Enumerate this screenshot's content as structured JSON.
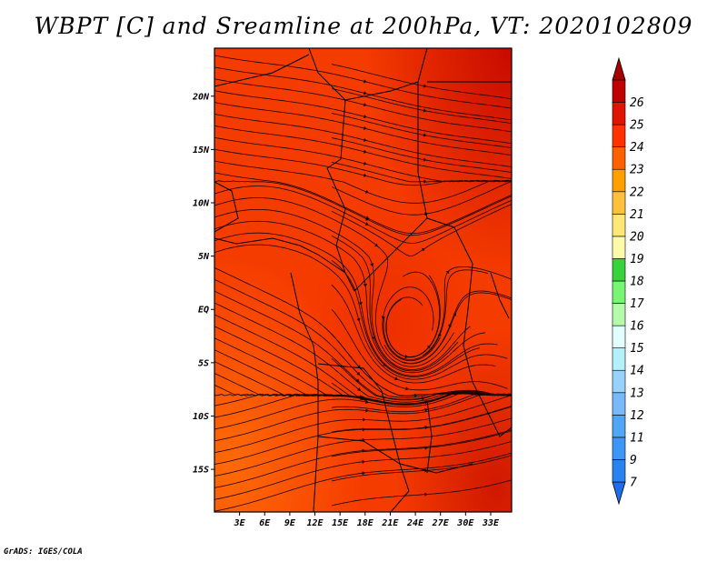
{
  "title": "WBPT [C] and Sreamline at 200hPa, VT: 2020102809",
  "footer": "GrADS: IGES/COLA",
  "chart_data": {
    "type": "heatmap",
    "title": "WBPT [C] and Sreamline at 200hPa, VT: 2020102809",
    "variable": "Wet-bulb potential temperature with streamlines",
    "units": "C",
    "level": "200hPa",
    "valid_time": "2020102809",
    "lon_range": [
      0,
      35.5
    ],
    "lat_range": [
      -19,
      24.5
    ],
    "x_ticks": [
      {
        "value": 3,
        "label": "3E"
      },
      {
        "value": 6,
        "label": "6E"
      },
      {
        "value": 9,
        "label": "9E"
      },
      {
        "value": 12,
        "label": "12E"
      },
      {
        "value": 15,
        "label": "15E"
      },
      {
        "value": 18,
        "label": "18E"
      },
      {
        "value": 21,
        "label": "21E"
      },
      {
        "value": 24,
        "label": "24E"
      },
      {
        "value": 27,
        "label": "27E"
      },
      {
        "value": 30,
        "label": "30E"
      },
      {
        "value": 33,
        "label": "33E"
      }
    ],
    "y_ticks": [
      {
        "value": 20,
        "label": "20N"
      },
      {
        "value": 15,
        "label": "15N"
      },
      {
        "value": 10,
        "label": "10N"
      },
      {
        "value": 5,
        "label": "5N"
      },
      {
        "value": 0,
        "label": "EQ"
      },
      {
        "value": -5,
        "label": "5S"
      },
      {
        "value": -10,
        "label": "10S"
      },
      {
        "value": -15,
        "label": "15S"
      }
    ],
    "colorbar": {
      "levels": [
        "7",
        "9",
        "11",
        "12",
        "13",
        "14",
        "15",
        "16",
        "17",
        "18",
        "19",
        "20",
        "21",
        "22",
        "23",
        "24",
        "25",
        "26"
      ],
      "colors": [
        "#1e6eeb",
        "#2882f0",
        "#3c96f5",
        "#50a5f5",
        "#78b9fa",
        "#96d2fa",
        "#b4f0fa",
        "#e1ffff",
        "#b4faaa",
        "#78f573",
        "#37d23c",
        "#fffaaa",
        "#ffe878",
        "#ffc03c",
        "#ffa000",
        "#ff6000",
        "#ff3200",
        "#e11400",
        "#c00000",
        "#a50000"
      ]
    },
    "field": "predominantly 23–25 C across the domain; slightly cooler (22–23) in the southwest; warmest (>25) in the northeast corner",
    "features": [
      "anticyclonic circulation centered near 23E, 2S",
      "westerly flow in the south",
      "easterly/northwesterly flow in the north"
    ]
  }
}
